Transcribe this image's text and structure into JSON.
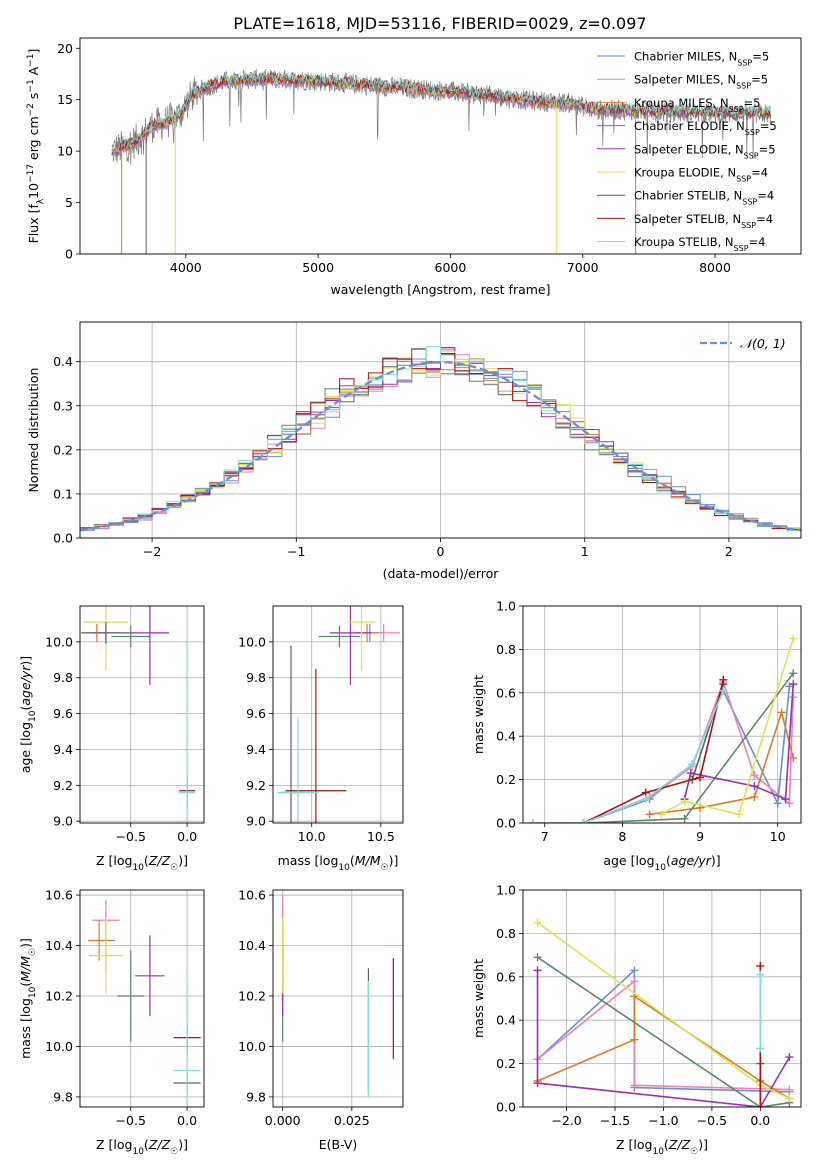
{
  "figure_title": "PLATE=1618, MJD=53116, FIBERID=0029, z=0.097",
  "colors": {
    "chabrier_miles": "#6a8fd8",
    "salpeter_miles": "#ee82b4",
    "kroupa_miles": "#e07a2a",
    "chabrier_elodie": "#5a8a66",
    "salpeter_elodie": "#9b30b0",
    "kroupa_elodie": "#d8e650",
    "chabrier_stelib": "#606060",
    "salpeter_stelib": "#b01010",
    "kroupa_stelib": "#80dcd8",
    "gauss": "#6a8fd8"
  },
  "chart_data": [
    {
      "id": "spectrum",
      "type": "line",
      "xlabel": "wavelength [Angstrom, rest frame]",
      "ylabel": "Flux [f_λ 10^-17 erg cm^-2 s^-1 A^-1]",
      "xlim": [
        3200,
        8650
      ],
      "ylim": [
        0,
        21
      ],
      "xticks": [
        4000,
        5000,
        6000,
        7000,
        8000
      ],
      "yticks": [
        0,
        5,
        10,
        15,
        20
      ],
      "grid": false,
      "legend_position": "top-right",
      "legend": [
        {
          "label": "Chabrier MILES, N",
          "sub": "SSP",
          "suffix": "=5",
          "color_key": "chabrier_miles"
        },
        {
          "label": "Salpeter MILES, N",
          "sub": "SSP",
          "suffix": "=5",
          "color_key": "salpeter_miles"
        },
        {
          "label": "Kroupa MILES, N",
          "sub": "SSP",
          "suffix": "=5",
          "color_key": "kroupa_miles"
        },
        {
          "label": "Chabrier ELODIE, N",
          "sub": "SSP",
          "suffix": "=5",
          "color_key": "chabrier_elodie"
        },
        {
          "label": "Salpeter ELODIE, N",
          "sub": "SSP",
          "suffix": "=5",
          "color_key": "salpeter_elodie"
        },
        {
          "label": "Kroupa ELODIE, N",
          "sub": "SSP",
          "suffix": "=4",
          "color_key": "kroupa_elodie"
        },
        {
          "label": "Chabrier STELIB, N",
          "sub": "SSP",
          "suffix": "=4",
          "color_key": "chabrier_stelib"
        },
        {
          "label": "Salpeter STELIB, N",
          "sub": "SSP",
          "suffix": "=4",
          "color_key": "salpeter_stelib"
        },
        {
          "label": "Kroupa STELIB, N",
          "sub": "SSP",
          "suffix": "=4",
          "color_key": "kroupa_stelib"
        }
      ],
      "continuum": {
        "x": [
          3440,
          3550,
          3650,
          3750,
          3850,
          3950,
          4050,
          4150,
          4300,
          4500,
          4700,
          5000,
          5300,
          5600,
          6000,
          6300,
          6600,
          6900,
          7100,
          7300,
          7600,
          8000,
          8400
        ],
        "y": [
          10.0,
          10.5,
          11.2,
          12.5,
          12.8,
          13.5,
          15.5,
          16.2,
          16.8,
          17.0,
          17.0,
          16.8,
          16.5,
          16.2,
          15.8,
          15.4,
          14.9,
          14.7,
          14.0,
          14.0,
          13.8,
          13.7,
          13.6
        ]
      }
    },
    {
      "id": "residuals",
      "type": "histogram",
      "xlabel": "(data-model)/error",
      "ylabel": "Normed distribution",
      "xlim": [
        -2.5,
        2.5
      ],
      "ylim": [
        0,
        0.49
      ],
      "xticks": [
        -2,
        -1,
        0,
        1,
        2
      ],
      "yticks": [
        0.0,
        0.1,
        0.2,
        0.3,
        0.4
      ],
      "grid": true,
      "legend_position": "top-right",
      "legend_label": "𝒩(0, 1)",
      "bin_width": 0.1
    },
    {
      "id": "age-vs-Z",
      "type": "scatter",
      "xlabel": "Z [log10(Z/Z☉)]",
      "ylabel": "age [log10(age/yr)]",
      "xlim": [
        -0.95,
        0.15
      ],
      "ylim": [
        8.99,
        10.2
      ],
      "xticks": [
        -0.5,
        0.0
      ],
      "yticks": [
        9.0,
        9.2,
        9.4,
        9.6,
        9.8,
        10.0
      ],
      "grid": true,
      "points": [
        {
          "x": -0.72,
          "y": 10.05,
          "xerr": 0.12,
          "yerr": 0.05,
          "color_key": "chabrier_miles"
        },
        {
          "x": -0.8,
          "y": 10.05,
          "xerr": 0.1,
          "yerr": 0.05,
          "color_key": "salpeter_miles"
        },
        {
          "x": -0.8,
          "y": 10.05,
          "xerr": 0.05,
          "yerr": 0.05,
          "color_key": "kroupa_miles"
        },
        {
          "x": -0.5,
          "y": 10.03,
          "xerr": 0.17,
          "yerr": 0.06,
          "color_key": "chabrier_elodie"
        },
        {
          "x": -0.33,
          "y": 10.05,
          "xerr": 0.17,
          "yerr": 0.29,
          "color_key": "salpeter_elodie"
        },
        {
          "x": -0.72,
          "y": 10.11,
          "xerr": 0.2,
          "yerr": 0.27,
          "color_key": "kroupa_elodie"
        },
        {
          "x": -0.72,
          "y": 10.05,
          "xerr": 0.22,
          "yerr": 0.06,
          "color_key": "chabrier_stelib"
        },
        {
          "x": 0.0,
          "y": 9.17,
          "xerr": 0.07,
          "yerr": 0.09,
          "color_key": "salpeter_stelib"
        },
        {
          "x": 0.0,
          "y": 9.16,
          "xerr": 0.07,
          "yerr": 0.84,
          "color_key": "kroupa_stelib"
        }
      ]
    },
    {
      "id": "age-vs-mass",
      "type": "scatter",
      "xlabel": "mass [log10(M/M☉)]",
      "ylabel": "",
      "xlim": [
        9.72,
        10.66
      ],
      "ylim": [
        8.99,
        10.2
      ],
      "xticks": [
        10.0,
        10.5
      ],
      "yticks": [
        9.0,
        9.2,
        9.4,
        9.6,
        9.8,
        10.0
      ],
      "grid": true,
      "points": [
        {
          "x": 10.42,
          "y": 10.05,
          "xerr": 0.1,
          "yerr": 0.05,
          "color_key": "chabrier_miles"
        },
        {
          "x": 10.52,
          "y": 10.05,
          "xerr": 0.12,
          "yerr": 0.05,
          "color_key": "salpeter_miles"
        },
        {
          "x": 10.4,
          "y": 10.05,
          "xerr": 0.08,
          "yerr": 0.05,
          "color_key": "kroupa_miles"
        },
        {
          "x": 10.2,
          "y": 10.03,
          "xerr": 0.15,
          "yerr": 0.06,
          "color_key": "chabrier_elodie"
        },
        {
          "x": 10.28,
          "y": 10.05,
          "xerr": 0.15,
          "yerr": 0.29,
          "color_key": "salpeter_elodie"
        },
        {
          "x": 10.36,
          "y": 10.11,
          "xerr": 0.1,
          "yerr": 0.27,
          "color_key": "kroupa_elodie"
        },
        {
          "x": 9.85,
          "y": 9.16,
          "xerr": 0.08,
          "yerr": 0.82,
          "color_key": "chabrier_stelib"
        },
        {
          "x": 10.03,
          "y": 9.17,
          "xerr": 0.22,
          "yerr": 0.68,
          "color_key": "salpeter_stelib"
        },
        {
          "x": 9.9,
          "y": 9.16,
          "xerr": 0.15,
          "yerr": 0.42,
          "color_key": "kroupa_stelib"
        }
      ]
    },
    {
      "id": "massweight-vs-age",
      "type": "line",
      "xlabel": "age [log10(age/yr)]",
      "ylabel": "mass weight",
      "xlim": [
        6.72,
        10.3
      ],
      "ylim": [
        0,
        1.0
      ],
      "xticks": [
        7,
        8,
        9,
        10
      ],
      "yticks": [
        0.0,
        0.2,
        0.4,
        0.6,
        0.8,
        1.0
      ],
      "grid": true,
      "series": [
        {
          "color_key": "chabrier_miles",
          "x": [
            6.85,
            7.5,
            8.35,
            8.9,
            9.3,
            10.0,
            10.15
          ],
          "y": [
            0.0,
            0.0,
            0.11,
            0.27,
            0.61,
            0.09,
            0.63
          ]
        },
        {
          "color_key": "salpeter_miles",
          "x": [
            6.85,
            7.5,
            8.35,
            8.9,
            9.3,
            9.7,
            10.15,
            10.2
          ],
          "y": [
            0.0,
            0.0,
            0.12,
            0.26,
            0.65,
            0.22,
            0.09,
            0.58
          ]
        },
        {
          "color_key": "kroupa_miles",
          "x": [
            8.35,
            9.0,
            9.7,
            10.05,
            10.2
          ],
          "y": [
            0.04,
            0.07,
            0.12,
            0.51,
            0.3
          ]
        },
        {
          "color_key": "chabrier_elodie",
          "x": [
            7.5,
            8.8,
            10.2
          ],
          "y": [
            0.0,
            0.02,
            0.69
          ]
        },
        {
          "color_key": "salpeter_elodie",
          "x": [
            8.8,
            8.88,
            9.7,
            10.1,
            10.2
          ],
          "y": [
            0.11,
            0.23,
            0.17,
            0.11,
            0.64
          ]
        },
        {
          "color_key": "kroupa_elodie",
          "x": [
            8.5,
            8.8,
            9.5,
            10.2
          ],
          "y": [
            0.04,
            0.1,
            0.04,
            0.85
          ]
        },
        {
          "color_key": "chabrier_stelib",
          "x": [
            8.9,
            9.3
          ],
          "y": [
            0.2,
            0.64
          ]
        },
        {
          "color_key": "salpeter_stelib",
          "x": [
            7.5,
            8.3,
            9.0,
            9.3
          ],
          "y": [
            0.0,
            0.14,
            0.21,
            0.66
          ]
        },
        {
          "color_key": "kroupa_stelib",
          "x": [
            6.85,
            7.5,
            8.3,
            8.9,
            9.3
          ],
          "y": [
            0.0,
            0.0,
            0.11,
            0.27,
            0.61
          ]
        }
      ]
    },
    {
      "id": "mass-vs-Z",
      "type": "scatter",
      "xlabel": "Z [log10(Z/Z☉)]",
      "ylabel": "mass [log10(M/M☉)]",
      "xlim": [
        -0.95,
        0.15
      ],
      "ylim": [
        9.76,
        10.62
      ],
      "xticks": [
        -0.5,
        0.0
      ],
      "yticks": [
        9.8,
        10.0,
        10.2,
        10.4,
        10.6
      ],
      "grid": true,
      "points": [
        {
          "x": -0.72,
          "y": 10.42,
          "xerr": 0.08,
          "yerr": 0.12,
          "color_key": "chabrier_miles"
        },
        {
          "x": -0.72,
          "y": 10.5,
          "xerr": 0.12,
          "yerr": 0.08,
          "color_key": "salpeter_miles"
        },
        {
          "x": -0.78,
          "y": 10.42,
          "xerr": 0.1,
          "yerr": 0.08,
          "color_key": "kroupa_miles"
        },
        {
          "x": -0.5,
          "y": 10.2,
          "xerr": 0.12,
          "yerr": 0.18,
          "color_key": "chabrier_elodie"
        },
        {
          "x": -0.33,
          "y": 10.28,
          "xerr": 0.13,
          "yerr": 0.16,
          "color_key": "salpeter_elodie"
        },
        {
          "x": -0.72,
          "y": 10.36,
          "xerr": 0.15,
          "yerr": 0.15,
          "color_key": "kroupa_elodie"
        },
        {
          "x": 0.0,
          "y": 9.855,
          "xerr": 0.12,
          "yerr": 0.04,
          "color_key": "chabrier_stelib"
        },
        {
          "x": 0.0,
          "y": 10.035,
          "xerr": 0.12,
          "yerr": 0.06,
          "color_key": "salpeter_stelib"
        },
        {
          "x": 0.0,
          "y": 9.905,
          "xerr": 0.12,
          "yerr": 0.36,
          "color_key": "kroupa_stelib"
        }
      ]
    },
    {
      "id": "mass-vs-EBV",
      "type": "scatter",
      "xlabel": "E(B-V)",
      "ylabel": "",
      "xlim": [
        -0.0035,
        0.0435
      ],
      "ylim": [
        9.76,
        10.62
      ],
      "xticks": [
        0.0,
        0.025
      ],
      "xticklabels": [
        "0.000",
        "0.025"
      ],
      "yticks": [
        9.8,
        10.0,
        10.2,
        10.4,
        10.6
      ],
      "grid": true,
      "points": [
        {
          "x": 0.0,
          "y": 10.42,
          "xerr": 0.0,
          "yerr": 0.15,
          "color_key": "chabrier_miles"
        },
        {
          "x": 0.0,
          "y": 10.5,
          "xerr": 0.0,
          "yerr": 0.1,
          "color_key": "salpeter_miles"
        },
        {
          "x": 0.0,
          "y": 10.42,
          "xerr": 0.0,
          "yerr": 0.06,
          "color_key": "kroupa_miles"
        },
        {
          "x": 0.0,
          "y": 10.2,
          "xerr": 0.0,
          "yerr": 0.18,
          "color_key": "chabrier_elodie"
        },
        {
          "x": 0.0,
          "y": 10.28,
          "xerr": 0.0,
          "yerr": 0.16,
          "color_key": "salpeter_elodie"
        },
        {
          "x": 0.0,
          "y": 10.36,
          "xerr": 0.0,
          "yerr": 0.15,
          "color_key": "kroupa_elodie"
        },
        {
          "x": 0.031,
          "y": 10.06,
          "xerr": 0.0,
          "yerr": 0.25,
          "color_key": "chabrier_stelib"
        },
        {
          "x": 0.04,
          "y": 10.15,
          "xerr": 0.0,
          "yerr": 0.2,
          "color_key": "salpeter_stelib"
        },
        {
          "x": 0.031,
          "y": 10.03,
          "xerr": 0.0,
          "yerr": 0.23,
          "color_key": "kroupa_stelib"
        }
      ]
    },
    {
      "id": "massweight-vs-Z",
      "type": "line",
      "xlabel": "Z [log10(Z/Z☉)]",
      "ylabel": "mass weight",
      "xlim": [
        -2.45,
        0.42
      ],
      "ylim": [
        0,
        1.0
      ],
      "xticks": [
        -2.0,
        -1.5,
        -1.0,
        -0.5,
        0.0
      ],
      "yticks": [
        0.0,
        0.2,
        0.4,
        0.6,
        0.8,
        1.0
      ],
      "grid": true,
      "series": [
        {
          "color_key": "chabrier_miles",
          "x": [
            -2.3,
            -1.3,
            -1.3,
            0.3
          ],
          "y": [
            0.22,
            0.63,
            0.09,
            0.07
          ]
        },
        {
          "color_key": "salpeter_miles",
          "x": [
            -2.3,
            -1.3,
            -1.3,
            0.3
          ],
          "y": [
            0.22,
            0.58,
            0.1,
            0.08
          ]
        },
        {
          "color_key": "kroupa_miles",
          "x": [
            -2.3,
            -1.3,
            -1.3,
            0.0,
            0.3
          ],
          "y": [
            0.12,
            0.31,
            0.51,
            0.12,
            0.04
          ]
        },
        {
          "color_key": "chabrier_elodie",
          "x": [
            -2.3,
            0.0,
            0.3
          ],
          "y": [
            0.69,
            0.0,
            0.02
          ]
        },
        {
          "color_key": "salpeter_elodie",
          "x": [
            -2.3,
            -2.3,
            0.0,
            0.3
          ],
          "y": [
            0.63,
            0.11,
            0.0,
            0.23
          ]
        },
        {
          "color_key": "kroupa_elodie",
          "x": [
            -2.3,
            0.0,
            0.3
          ],
          "y": [
            0.85,
            0.1,
            0.04
          ]
        },
        {
          "color_key": "chabrier_stelib",
          "x": [
            0.0,
            0.0
          ],
          "y": [
            0.2,
            0.0
          ]
        },
        {
          "color_key": "salpeter_stelib",
          "x": [
            0.0,
            0.0
          ],
          "y": [
            0.65,
            0.0
          ]
        },
        {
          "color_key": "kroupa_stelib",
          "x": [
            0.0,
            0.0
          ],
          "y": [
            0.61,
            0.27
          ]
        }
      ]
    }
  ]
}
